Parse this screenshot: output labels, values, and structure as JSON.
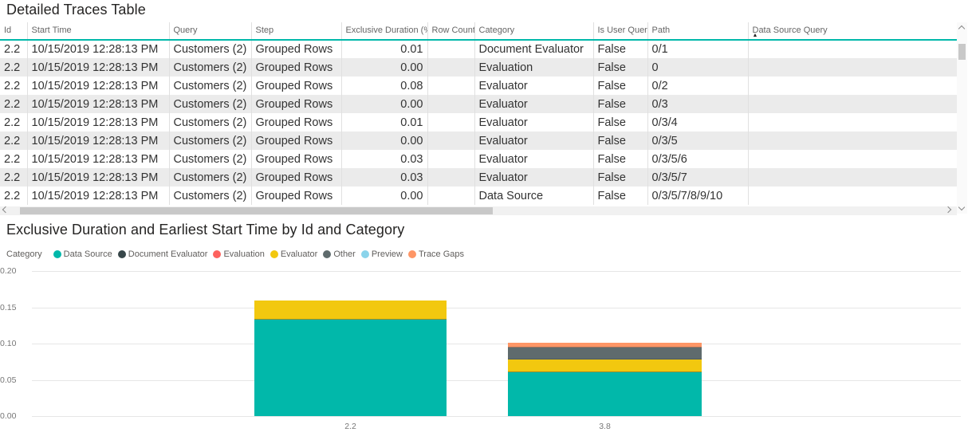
{
  "colors": {
    "accent_teal": "#01B8AA",
    "row_alt_gray": "#EBEBEB",
    "header_text": "#666666",
    "cell_text": "#333333",
    "title_text": "#252423",
    "gridline": "#E6E6E6",
    "axis_text": "#777777",
    "scrollbar_thumb": "#C8C8C8"
  },
  "table": {
    "title": "Detailed Traces Table",
    "columns": [
      {
        "label": "Id",
        "align": "left"
      },
      {
        "label": "Start Time",
        "align": "left"
      },
      {
        "label": "Query",
        "align": "left"
      },
      {
        "label": "Step",
        "align": "left"
      },
      {
        "label": "Exclusive Duration (%)",
        "align": "right"
      },
      {
        "label": "Row Count",
        "align": "right"
      },
      {
        "label": "Category",
        "align": "left"
      },
      {
        "label": "Is User Query",
        "align": "left"
      },
      {
        "label": "Path",
        "align": "left"
      },
      {
        "label": "Data Source Query",
        "align": "left",
        "sorted": true,
        "sort_indicator": "▲"
      }
    ],
    "rows": [
      [
        "2.2",
        "10/15/2019 12:28:13 PM",
        "Customers (2)",
        "Grouped Rows",
        "0.01",
        "",
        "Document Evaluator",
        "False",
        "0/1",
        ""
      ],
      [
        "2.2",
        "10/15/2019 12:28:13 PM",
        "Customers (2)",
        "Grouped Rows",
        "0.00",
        "",
        "Evaluation",
        "False",
        "0",
        ""
      ],
      [
        "2.2",
        "10/15/2019 12:28:13 PM",
        "Customers (2)",
        "Grouped Rows",
        "0.08",
        "",
        "Evaluator",
        "False",
        "0/2",
        ""
      ],
      [
        "2.2",
        "10/15/2019 12:28:13 PM",
        "Customers (2)",
        "Grouped Rows",
        "0.00",
        "",
        "Evaluator",
        "False",
        "0/3",
        ""
      ],
      [
        "2.2",
        "10/15/2019 12:28:13 PM",
        "Customers (2)",
        "Grouped Rows",
        "0.01",
        "",
        "Evaluator",
        "False",
        "0/3/4",
        ""
      ],
      [
        "2.2",
        "10/15/2019 12:28:13 PM",
        "Customers (2)",
        "Grouped Rows",
        "0.00",
        "",
        "Evaluator",
        "False",
        "0/3/5",
        ""
      ],
      [
        "2.2",
        "10/15/2019 12:28:13 PM",
        "Customers (2)",
        "Grouped Rows",
        "0.03",
        "",
        "Evaluator",
        "False",
        "0/3/5/6",
        ""
      ],
      [
        "2.2",
        "10/15/2019 12:28:13 PM",
        "Customers (2)",
        "Grouped Rows",
        "0.03",
        "",
        "Evaluator",
        "False",
        "0/3/5/7",
        ""
      ],
      [
        "2.2",
        "10/15/2019 12:28:13 PM",
        "Customers (2)",
        "Grouped Rows",
        "0.00",
        "",
        "Data Source",
        "False",
        "0/3/5/7/8/9/10",
        ""
      ]
    ]
  },
  "chart": {
    "title": "Exclusive Duration and Earliest Start Time by Id and Category",
    "legend_title": "Category"
  },
  "chart_data": {
    "type": "bar",
    "stacked": true,
    "title": "Exclusive Duration and Earliest Start Time by Id and Category",
    "xlabel": "",
    "ylabel": "",
    "categories": [
      "2.2",
      "3.8"
    ],
    "series": [
      {
        "name": "Data Source",
        "color": "#01B8AA",
        "values": [
          0.133,
          0.06
        ]
      },
      {
        "name": "Document Evaluator",
        "color": "#374649",
        "values": [
          0,
          0
        ]
      },
      {
        "name": "Evaluation",
        "color": "#FD625E",
        "values": [
          0,
          0
        ]
      },
      {
        "name": "Evaluator",
        "color": "#F2C80F",
        "values": [
          0.026,
          0.0175
        ]
      },
      {
        "name": "Other",
        "color": "#5F6B6D",
        "values": [
          0,
          0.0165
        ]
      },
      {
        "name": "Preview",
        "color": "#8AD4EB",
        "values": [
          0,
          0
        ]
      },
      {
        "name": "Trace Gaps",
        "color": "#FE9666",
        "values": [
          0,
          0.007
        ]
      }
    ],
    "ylim": [
      0,
      0.2
    ],
    "yticks": [
      "0.00",
      "0.05",
      "0.10",
      "0.15",
      "0.20"
    ],
    "grid": true,
    "legend_position": "top"
  }
}
